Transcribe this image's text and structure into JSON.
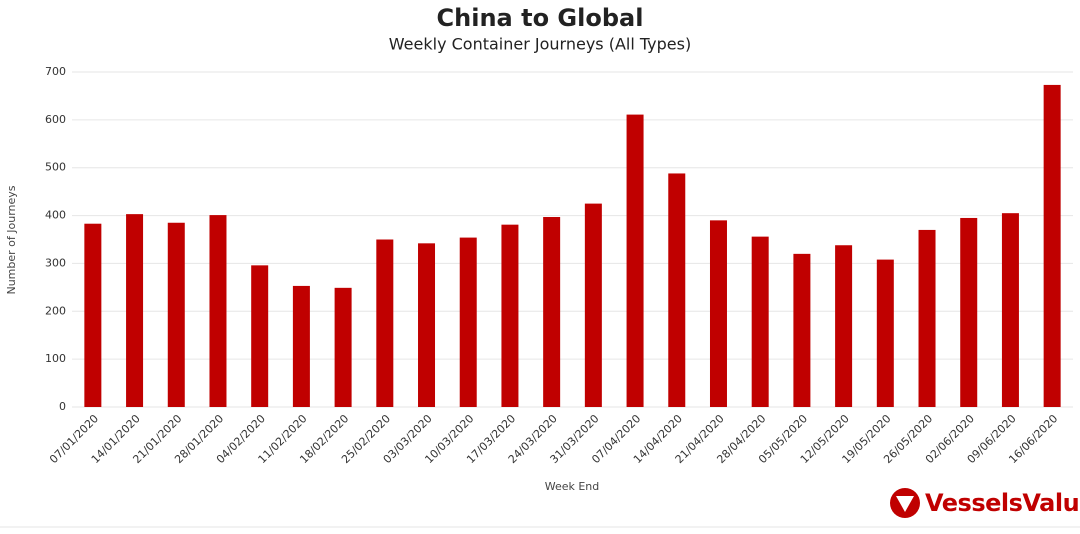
{
  "chart_data": {
    "type": "bar",
    "title": "China to Global",
    "subtitle": "Weekly Container Journeys (All Types)",
    "x_label": "Week End",
    "y_label": "Number of Journeys",
    "categories": [
      "07/01/2020",
      "14/01/2020",
      "21/01/2020",
      "28/01/2020",
      "04/02/2020",
      "11/02/2020",
      "18/02/2020",
      "25/02/2020",
      "03/03/2020",
      "10/03/2020",
      "17/03/2020",
      "24/03/2020",
      "31/03/2020",
      "07/04/2020",
      "14/04/2020",
      "21/04/2020",
      "28/04/2020",
      "05/05/2020",
      "12/05/2020",
      "19/05/2020",
      "26/05/2020",
      "02/06/2020",
      "09/06/2020",
      "16/06/2020"
    ],
    "values": [
      383,
      403,
      385,
      401,
      296,
      253,
      249,
      350,
      342,
      354,
      381,
      397,
      425,
      611,
      488,
      390,
      356,
      320,
      338,
      308,
      370,
      395,
      405,
      673
    ],
    "color": "#c00000",
    "ylim": [
      0,
      700
    ],
    "yticks": [
      0,
      100,
      200,
      300,
      400,
      500,
      600,
      700
    ],
    "grid": true,
    "logo": "VesselsValue"
  }
}
